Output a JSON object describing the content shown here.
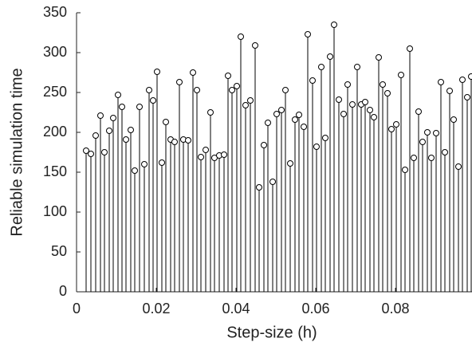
{
  "chart_data": {
    "type": "stem",
    "xlabel": "Step-size (h)",
    "ylabel": "Reliable simulation time",
    "color": "#000000",
    "x": [
      0.0024,
      0.0036,
      0.0048,
      0.006,
      0.007,
      0.0082,
      0.0092,
      0.0104,
      0.0114,
      0.0124,
      0.0136,
      0.0146,
      0.0158,
      0.017,
      0.0182,
      0.0192,
      0.0202,
      0.0214,
      0.0224,
      0.0236,
      0.0246,
      0.0258,
      0.0268,
      0.028,
      0.0292,
      0.0302,
      0.0312,
      0.0324,
      0.0336,
      0.0346,
      0.0358,
      0.037,
      0.038,
      0.039,
      0.0402,
      0.0412,
      0.0424,
      0.0436,
      0.0448,
      0.0458,
      0.047,
      0.048,
      0.0492,
      0.0502,
      0.0514,
      0.0524,
      0.0536,
      0.0548,
      0.0558,
      0.057,
      0.058,
      0.0592,
      0.0602,
      0.0614,
      0.0624,
      0.0636,
      0.0646,
      0.0658,
      0.067,
      0.068,
      0.0692,
      0.0704,
      0.0714,
      0.0724,
      0.0736,
      0.0746,
      0.0758,
      0.0768,
      0.078,
      0.079,
      0.0802,
      0.0814,
      0.0824,
      0.0836,
      0.0846,
      0.0858,
      0.0868,
      0.088,
      0.089,
      0.0902,
      0.0914,
      0.0924,
      0.0936,
      0.0946,
      0.0958,
      0.0968,
      0.098,
      0.099
    ],
    "values": [
      177,
      173,
      196,
      221,
      175,
      202,
      218,
      247,
      232,
      191,
      203,
      152,
      232,
      160,
      253,
      240,
      276,
      162,
      213,
      191,
      188,
      263,
      191,
      190,
      275,
      253,
      169,
      178,
      225,
      168,
      171,
      172,
      271,
      253,
      258,
      320,
      234,
      240,
      309,
      131,
      184,
      212,
      138,
      223,
      228,
      253,
      161,
      216,
      222,
      207,
      323,
      265,
      182,
      282,
      193,
      295,
      335,
      241,
      223,
      260,
      235,
      282,
      235,
      238,
      228,
      219,
      294,
      260,
      249,
      204,
      210,
      272,
      153,
      305,
      168,
      226,
      188,
      200,
      168,
      199,
      263,
      175,
      252,
      216,
      157,
      266,
      244,
      270
    ],
    "xlim": [
      0,
      0.0992
    ],
    "ylim": [
      0,
      350
    ],
    "xticks": [
      0,
      0.02,
      0.04,
      0.06,
      0.08
    ],
    "yticks": [
      0,
      50,
      100,
      150,
      200,
      250,
      300,
      350
    ]
  }
}
